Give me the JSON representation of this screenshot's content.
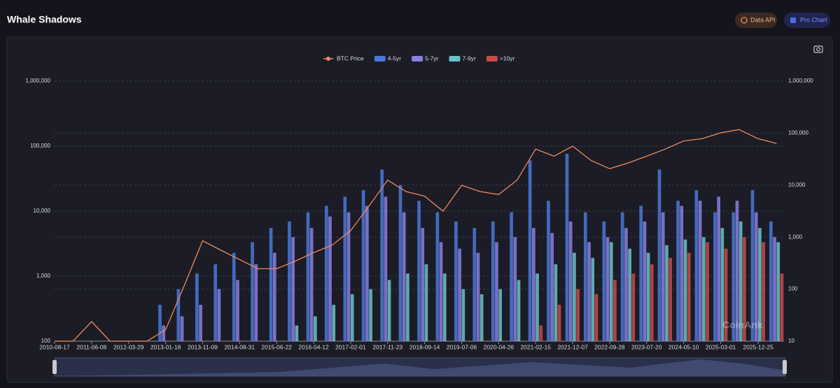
{
  "header": {
    "title": "Whale Shadows",
    "buttons": [
      "Data API",
      "Pro Chart"
    ]
  },
  "chart_data": {
    "type": "bar-line",
    "watermark": "CoinAnk",
    "x": [
      "2010-08-17",
      "2011-01-11",
      "2011-06-08",
      "2011-11-02",
      "2012-03-29",
      "2012-08-23",
      "2013-01-18",
      "2013-06-14",
      "2013-11-09",
      "2014-04-05",
      "2014-08-31",
      "2015-01-25",
      "2015-06-22",
      "2015-11-16",
      "2016-04-12",
      "2016-09-06",
      "2017-02-01",
      "2017-06-28",
      "2017-11-23",
      "2018-04-19",
      "2018-09-14",
      "2019-02-08",
      "2019-07-06",
      "2019-11-30",
      "2020-04-26",
      "2020-09-20",
      "2021-02-15",
      "2021-07-12",
      "2021-12-07",
      "2022-05-03",
      "2022-09-28",
      "2023-02-22",
      "2023-07-20",
      "2023-12-14",
      "2024-05-10",
      "2024-10-04",
      "2025-03-01",
      "2025-07-26",
      "2025-12-25",
      "2026-05-21"
    ],
    "xlim": [
      "2010-08-17",
      "2026-07-19"
    ],
    "xticks": [
      "2010-08-17",
      "2011-06-08",
      "2012-03-29",
      "2013-01-18",
      "2013-11-09",
      "2014-08-31",
      "2015-06-22",
      "2016-04-12",
      "2017-02-01",
      "2017-11-23",
      "2018-09-14",
      "2019-07-06",
      "2020-04-26",
      "2021-02-15",
      "2021-12-07",
      "2022-09-28",
      "2023-07-20",
      "2024-05-10",
      "2025-03-01",
      "2025-12-25"
    ],
    "log_scale": true,
    "grid": true,
    "legend": "top",
    "ylim": [
      100,
      1000000
    ],
    "yticks": [
      100,
      {
        "value": 1000,
        "label": "1,000"
      },
      {
        "value": 10000,
        "label": "10,000"
      },
      {
        "value": 100000,
        "label": "100,000"
      },
      {
        "value": 1000000,
        "label": "1,000,000"
      }
    ],
    "y2lim": [
      10,
      1000000
    ],
    "y2ticks": [
      10,
      100,
      {
        "value": 1000,
        "label": "1,000"
      },
      {
        "value": 10000,
        "label": "10,000"
      },
      {
        "value": 100000,
        "label": "100,000"
      },
      {
        "value": 1000000,
        "label": "1,000,000"
      }
    ],
    "series": [
      {
        "name": "BTC Price",
        "type": "line",
        "color": "#f08a5d",
        "values": [
          100,
          100,
          200,
          100,
          100,
          100,
          150,
          700,
          3500,
          2500,
          1800,
          1300,
          1300,
          1700,
          2300,
          3000,
          5000,
          12000,
          30000,
          20000,
          17000,
          10000,
          25000,
          20000,
          18000,
          30000,
          90000,
          70000,
          100000,
          60000,
          45000,
          55000,
          70000,
          90000,
          120000,
          130000,
          160000,
          180000,
          130000,
          110000
        ]
      },
      {
        "name": "4-5yr",
        "type": "bar",
        "axis": "y2",
        "color": "#4a78d8",
        "values": [
          null,
          null,
          null,
          null,
          null,
          null,
          50,
          100,
          200,
          300,
          500,
          800,
          1500,
          2000,
          3000,
          4000,
          6000,
          8000,
          20000,
          10000,
          5000,
          3000,
          2000,
          1500,
          2000,
          3000,
          30000,
          5000,
          40000,
          3000,
          2000,
          3000,
          4000,
          20000,
          5000,
          8000,
          3000,
          3000,
          8000,
          2000
        ]
      },
      {
        "name": "5-7yr",
        "type": "bar",
        "axis": "y2",
        "color": "#8b7fe0",
        "values": [
          null,
          null,
          null,
          null,
          null,
          null,
          20,
          30,
          50,
          100,
          150,
          300,
          500,
          1000,
          1500,
          2500,
          3000,
          4000,
          6000,
          3000,
          1500,
          800,
          600,
          500,
          800,
          1000,
          1500,
          1200,
          2000,
          800,
          1000,
          1500,
          2000,
          3000,
          4000,
          5000,
          6000,
          5000,
          3000,
          1000
        ]
      },
      {
        "name": "7-9yr",
        "type": "bar",
        "axis": "y2",
        "color": "#6bc2c9",
        "values": [
          null,
          null,
          null,
          null,
          null,
          null,
          null,
          null,
          null,
          null,
          null,
          null,
          null,
          20,
          30,
          50,
          80,
          100,
          150,
          200,
          300,
          200,
          100,
          80,
          100,
          150,
          200,
          300,
          500,
          400,
          800,
          600,
          500,
          700,
          900,
          1000,
          1500,
          2000,
          1500,
          800
        ]
      },
      {
        "name": ">10yr",
        "type": "bar",
        "axis": "y2",
        "color": "#c94a4a",
        "values": [
          null,
          null,
          null,
          null,
          null,
          null,
          null,
          null,
          null,
          null,
          null,
          null,
          null,
          null,
          null,
          null,
          null,
          null,
          null,
          null,
          null,
          null,
          null,
          null,
          null,
          null,
          20,
          50,
          100,
          80,
          150,
          200,
          300,
          400,
          500,
          800,
          600,
          1000,
          800,
          200
        ]
      }
    ]
  }
}
